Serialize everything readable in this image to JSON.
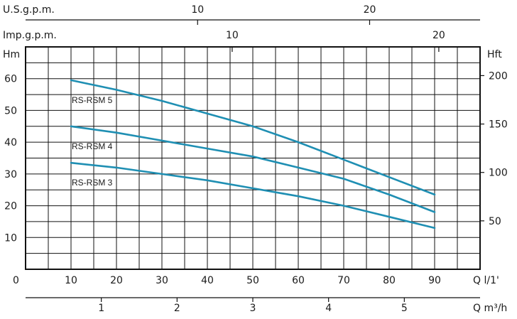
{
  "chart_data": {
    "type": "line",
    "xlabel": "Q l/1'",
    "ylabel": "Hm",
    "y2label": "Hft",
    "xlim": [
      0,
      105
    ],
    "ylim": [
      0,
      70
    ],
    "grid": true,
    "series": [
      {
        "name": "RS-RSM 5",
        "x": [
          10,
          20,
          30,
          40,
          50,
          60,
          70,
          80,
          90
        ],
        "y": [
          59.5,
          56.5,
          53,
          49,
          45,
          40,
          34.5,
          29,
          23.5
        ]
      },
      {
        "name": "RS-RSM 4",
        "x": [
          10,
          20,
          30,
          40,
          50,
          60,
          70,
          80,
          90
        ],
        "y": [
          45,
          43,
          40.5,
          38,
          35.5,
          32,
          28.5,
          23.5,
          18
        ]
      },
      {
        "name": "RS-RSM 3",
        "x": [
          10,
          20,
          30,
          40,
          50,
          60,
          70,
          80,
          90
        ],
        "y": [
          33.5,
          32,
          30,
          28,
          25.5,
          23,
          20,
          16.5,
          13
        ]
      }
    ],
    "axes": {
      "left": {
        "label": "Hm",
        "ticks": [
          "10",
          "20",
          "30",
          "40",
          "50",
          "60"
        ],
        "values": [
          10,
          20,
          30,
          40,
          50,
          60
        ]
      },
      "right": {
        "label": "Hft",
        "ticks": [
          "50",
          "100",
          "150",
          "200"
        ],
        "values": [
          50,
          100,
          150,
          200
        ]
      },
      "bottom_lpm": {
        "label": "Q l/1'",
        "zero_label": "0",
        "ticks": [
          "10",
          "20",
          "30",
          "40",
          "50",
          "60",
          "70",
          "80",
          "90"
        ],
        "values": [
          10,
          20,
          30,
          40,
          50,
          60,
          70,
          80,
          90
        ]
      },
      "bottom_m3h": {
        "label": "Q m³/h",
        "ticks": [
          "1",
          "2",
          "3",
          "4",
          "5"
        ],
        "values": [
          1,
          2,
          3,
          4,
          5
        ]
      },
      "top_usgpm": {
        "label": "U.S.g.p.m.",
        "ticks": [
          "10",
          "20"
        ],
        "values": [
          10,
          20
        ]
      },
      "top_impgpm": {
        "label": "Imp.g.p.m.",
        "ticks": [
          "10",
          "20"
        ],
        "values": [
          10,
          20
        ]
      }
    }
  }
}
